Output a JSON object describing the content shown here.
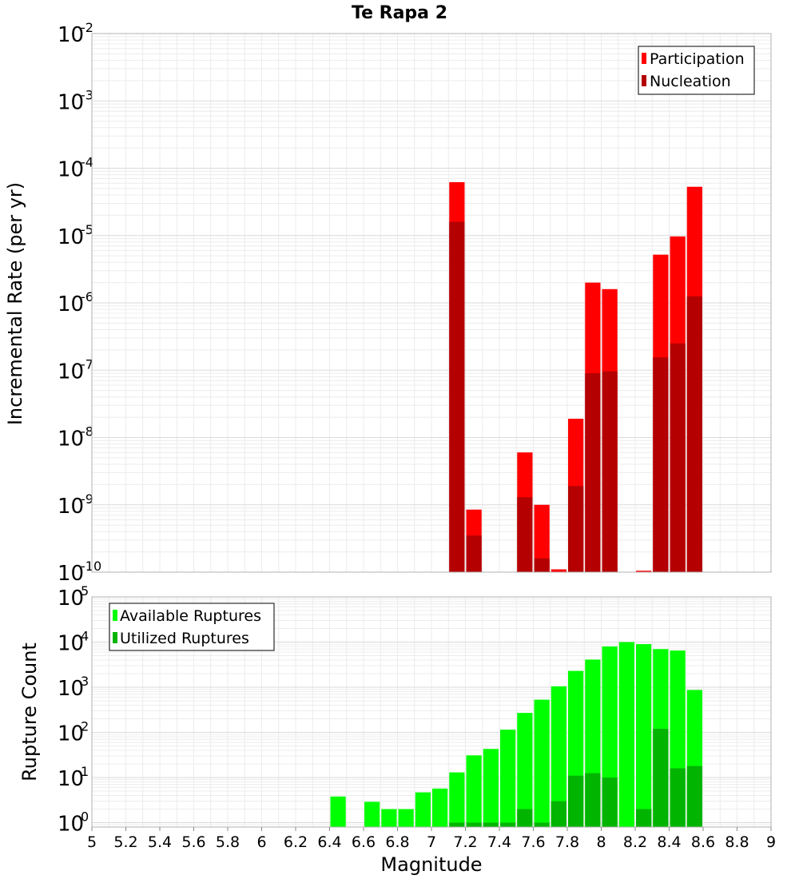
{
  "chart_data": [
    {
      "type": "bar",
      "title": "Te Rapa 2",
      "xlabel": "",
      "ylabel": "Incremental Rate (per yr)",
      "yscale": "log",
      "ylim": [
        1e-10,
        0.01
      ],
      "xlim": [
        5,
        9
      ],
      "x": [
        7.15,
        7.25,
        7.55,
        7.65,
        7.75,
        7.85,
        7.95,
        8.05,
        8.25,
        8.35,
        8.45,
        8.55
      ],
      "series": [
        {
          "name": "Participation",
          "color": "#ff0000",
          "values": [
            6.2e-05,
            8.5e-10,
            6e-09,
            1e-09,
            1.1e-10,
            1.9e-08,
            2e-06,
            1.6e-06,
            1.05e-10,
            5.2e-06,
            9.7e-06,
            5.3e-05
          ]
        },
        {
          "name": "Nucleation",
          "color": "#b40000",
          "values": [
            1.6e-05,
            3.5e-10,
            1.3e-09,
            1.6e-10,
            null,
            1.9e-09,
            9e-08,
            9.6e-08,
            null,
            1.55e-07,
            2.5e-07,
            1.25e-06
          ]
        }
      ],
      "legend": "top-right",
      "grid": true
    },
    {
      "type": "bar",
      "title": "",
      "xlabel": "Magnitude",
      "ylabel": "Rupture Count",
      "yscale": "log",
      "ylim": [
        0.8,
        100000.0
      ],
      "xlim": [
        5,
        9
      ],
      "x": [
        6.45,
        6.65,
        6.75,
        6.85,
        6.95,
        7.05,
        7.15,
        7.25,
        7.35,
        7.45,
        7.55,
        7.65,
        7.75,
        7.85,
        7.95,
        8.05,
        8.15,
        8.25,
        8.35,
        8.45,
        8.55
      ],
      "series": [
        {
          "name": "Available Ruptures",
          "color": "#00ff00",
          "values": [
            3.8,
            2.9,
            2.0,
            2.0,
            4.7,
            5.7,
            13,
            31,
            43,
            115,
            270,
            530,
            1050,
            2300,
            4100,
            8000,
            10000,
            9000,
            7000,
            6500,
            870
          ]
        },
        {
          "name": "Utilized Ruptures",
          "color": "#00b400",
          "values": [
            null,
            null,
            null,
            null,
            null,
            null,
            1,
            1,
            1,
            1,
            2,
            1,
            3,
            11,
            12.5,
            10,
            null,
            2,
            120,
            16,
            18
          ]
        }
      ],
      "legend": "top-left",
      "grid": true
    }
  ],
  "axes": {
    "x_ticks": [
      "5",
      "5.2",
      "5.4",
      "5.6",
      "5.8",
      "6",
      "6.2",
      "6.4",
      "6.6",
      "6.8",
      "7",
      "7.2",
      "7.4",
      "7.6",
      "7.8",
      "8",
      "8.2",
      "8.4",
      "8.6",
      "8.8",
      "9"
    ],
    "top_y_exponents": [
      "-2",
      "-3",
      "-4",
      "-5",
      "-6",
      "-7",
      "-8",
      "-9",
      "-10"
    ],
    "bottom_y_exponents": [
      "5",
      "4",
      "3",
      "2",
      "1",
      "0"
    ],
    "y_tick_base": "10"
  }
}
